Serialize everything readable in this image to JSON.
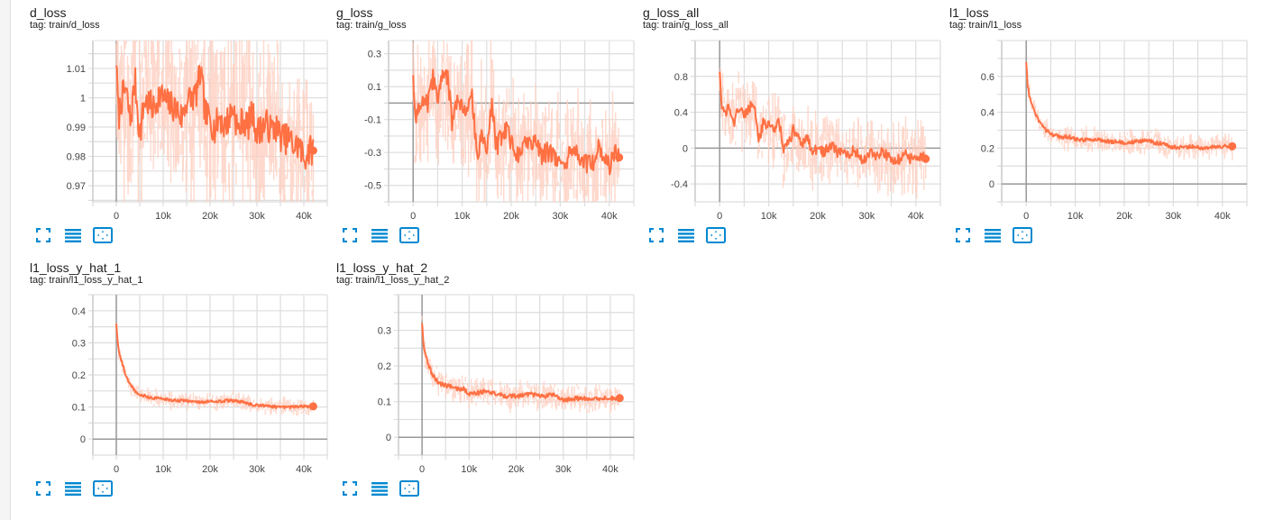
{
  "colors": {
    "accent": "#ff7043",
    "raw_line": "#ffccbc",
    "grid": "#dddddd",
    "axis_zero": "#999999",
    "icon": "#0288d1",
    "text": "#212121"
  },
  "toolbar": {
    "fit_icon": "fullscreen-icon",
    "data_icon": "list-icon",
    "zoom_icon": "fit-domain-icon"
  },
  "cards": [
    {
      "title": "d_loss",
      "tag": "tag: train/d_loss"
    },
    {
      "title": "g_loss",
      "tag": "tag: train/g_loss"
    },
    {
      "title": "g_loss_all",
      "tag": "tag: train/g_loss_all"
    },
    {
      "title": "l1_loss",
      "tag": "tag: train/l1_loss"
    },
    {
      "title": "l1_loss_y_hat_1",
      "tag": "tag: train/l1_loss_y_hat_1"
    },
    {
      "title": "l1_loss_y_hat_2",
      "tag": "tag: train/l1_loss_y_hat_2"
    }
  ],
  "chart_data": [
    {
      "type": "line",
      "title": "d_loss",
      "subtitle": "tag: train/d_loss",
      "xlabel": "",
      "ylabel": "",
      "x_ticks": [
        "0",
        "10k",
        "20k",
        "30k",
        "40k"
      ],
      "y_ticks": [
        "1.01",
        "1",
        "0.99",
        "0.98",
        "0.97"
      ],
      "y_tick_values": [
        1.01,
        1.0,
        0.99,
        0.98,
        0.97
      ],
      "xlim": [
        -5000,
        45000
      ],
      "ylim": [
        0.9645,
        1.0195
      ],
      "grid": true,
      "raw_spread": 0.03,
      "series": [
        {
          "name": "train/d_loss (smoothed)",
          "x": [
            0,
            500,
            1000,
            2000,
            3000,
            4000,
            5000,
            6000,
            7000,
            8000,
            9000,
            10000,
            11000,
            12000,
            13000,
            14000,
            15000,
            16000,
            17000,
            18000,
            19000,
            20000,
            21000,
            22000,
            23000,
            24000,
            25000,
            26000,
            27000,
            28000,
            29000,
            30000,
            31000,
            32000,
            33000,
            34000,
            35000,
            36000,
            37000,
            38000,
            39000,
            40000,
            41000,
            42000
          ],
          "values": [
            1.011,
            0.993,
            0.999,
            1.003,
            0.992,
            1.006,
            0.987,
            0.999,
            0.998,
            0.996,
            1.001,
            1.0,
            0.998,
            0.997,
            0.996,
            0.993,
            0.999,
            1.0,
            1.001,
            1.009,
            0.994,
            0.993,
            0.989,
            0.994,
            0.99,
            0.993,
            0.997,
            0.988,
            0.993,
            0.99,
            0.995,
            0.988,
            0.99,
            0.991,
            0.989,
            0.99,
            0.987,
            0.986,
            0.986,
            0.983,
            0.984,
            0.979,
            0.982,
            0.982
          ]
        }
      ]
    },
    {
      "type": "line",
      "title": "g_loss",
      "subtitle": "tag: train/g_loss",
      "xlabel": "",
      "ylabel": "",
      "x_ticks": [
        "0",
        "10k",
        "20k",
        "30k",
        "40k"
      ],
      "y_ticks": [
        "0.3",
        "0.1",
        "-0.1",
        "-0.3",
        "-0.5"
      ],
      "y_tick_values": [
        0.3,
        0.1,
        -0.1,
        -0.3,
        -0.5
      ],
      "xlim": [
        -5000,
        45000
      ],
      "ylim": [
        -0.6,
        0.38
      ],
      "grid": true,
      "raw_spread": 0.35,
      "series": [
        {
          "name": "train/g_loss (smoothed)",
          "x": [
            0,
            500,
            1000,
            2000,
            3000,
            4000,
            5000,
            6000,
            7000,
            8000,
            9000,
            10000,
            11000,
            12000,
            13000,
            14000,
            15000,
            16000,
            17000,
            18000,
            19000,
            20000,
            21000,
            22000,
            23000,
            24000,
            25000,
            26000,
            27000,
            28000,
            29000,
            30000,
            31000,
            32000,
            33000,
            34000,
            35000,
            36000,
            37000,
            38000,
            39000,
            40000,
            41000,
            42000
          ],
          "values": [
            0.17,
            -0.12,
            -0.05,
            0.05,
            -0.02,
            0.15,
            0.0,
            0.2,
            0.15,
            -0.12,
            0.05,
            0.0,
            -0.05,
            0.05,
            -0.3,
            -0.2,
            -0.25,
            0.0,
            -0.28,
            -0.2,
            -0.15,
            -0.25,
            -0.3,
            -0.3,
            -0.24,
            -0.27,
            -0.25,
            -0.32,
            -0.3,
            -0.3,
            -0.35,
            -0.33,
            -0.36,
            -0.3,
            -0.28,
            -0.32,
            -0.38,
            -0.34,
            -0.36,
            -0.25,
            -0.32,
            -0.38,
            -0.31,
            -0.33
          ]
        }
      ]
    },
    {
      "type": "line",
      "title": "g_loss_all",
      "subtitle": "tag: train/g_loss_all",
      "xlabel": "",
      "ylabel": "",
      "x_ticks": [
        "0",
        "10k",
        "20k",
        "30k",
        "40k"
      ],
      "y_ticks": [
        "0.8",
        "0.4",
        "0",
        "-0.4"
      ],
      "y_tick_values": [
        0.8,
        0.4,
        0.0,
        -0.4
      ],
      "xlim": [
        -5000,
        45000
      ],
      "ylim": [
        -0.6,
        1.2
      ],
      "grid": true,
      "raw_spread": 0.35,
      "series": [
        {
          "name": "train/g_loss_all (smoothed)",
          "x": [
            0,
            500,
            1000,
            2000,
            3000,
            4000,
            5000,
            6000,
            7000,
            8000,
            9000,
            10000,
            11000,
            12000,
            13000,
            14000,
            15000,
            16000,
            17000,
            18000,
            19000,
            20000,
            21000,
            22000,
            23000,
            24000,
            25000,
            26000,
            27000,
            28000,
            29000,
            30000,
            31000,
            32000,
            33000,
            34000,
            35000,
            36000,
            37000,
            38000,
            39000,
            40000,
            41000,
            42000
          ],
          "values": [
            0.85,
            0.42,
            0.4,
            0.45,
            0.3,
            0.48,
            0.35,
            0.45,
            0.48,
            0.1,
            0.3,
            0.25,
            0.2,
            0.35,
            0.0,
            0.05,
            0.2,
            0.1,
            0.05,
            0.1,
            -0.05,
            0.0,
            -0.05,
            0.0,
            0.02,
            -0.05,
            -0.05,
            -0.1,
            -0.02,
            -0.05,
            -0.15,
            -0.1,
            -0.05,
            -0.1,
            -0.05,
            -0.08,
            -0.15,
            -0.13,
            -0.12,
            -0.05,
            -0.12,
            -0.15,
            -0.08,
            -0.12
          ]
        }
      ]
    },
    {
      "type": "line",
      "title": "l1_loss",
      "subtitle": "tag: train/l1_loss",
      "xlabel": "",
      "ylabel": "",
      "x_ticks": [
        "0",
        "10k",
        "20k",
        "30k",
        "40k"
      ],
      "y_ticks": [
        "0.6",
        "0.4",
        "0.2",
        "0"
      ],
      "y_tick_values": [
        0.6,
        0.4,
        0.2,
        0.0
      ],
      "xlim": [
        -5000,
        45000
      ],
      "ylim": [
        -0.1,
        0.8
      ],
      "grid": true,
      "raw_spread": 0.06,
      "series": [
        {
          "name": "train/l1_loss (smoothed)",
          "x": [
            0,
            300,
            700,
            1200,
            2000,
            3000,
            4000,
            5000,
            6000,
            7000,
            8000,
            9000,
            10000,
            12000,
            14000,
            16000,
            18000,
            20000,
            22000,
            24000,
            25000,
            26000,
            28000,
            29000,
            30000,
            32000,
            34000,
            36000,
            38000,
            40000,
            42000
          ],
          "values": [
            0.68,
            0.55,
            0.48,
            0.44,
            0.38,
            0.33,
            0.3,
            0.28,
            0.27,
            0.26,
            0.265,
            0.26,
            0.25,
            0.245,
            0.25,
            0.24,
            0.235,
            0.23,
            0.235,
            0.24,
            0.245,
            0.23,
            0.225,
            0.21,
            0.205,
            0.205,
            0.21,
            0.2,
            0.205,
            0.21,
            0.21
          ]
        }
      ]
    },
    {
      "type": "line",
      "title": "l1_loss_y_hat_1",
      "subtitle": "tag: train/l1_loss_y_hat_1",
      "xlabel": "",
      "ylabel": "",
      "x_ticks": [
        "0",
        "10k",
        "20k",
        "30k",
        "40k"
      ],
      "y_ticks": [
        "0.4",
        "0.3",
        "0.2",
        "0.1",
        "0"
      ],
      "y_tick_values": [
        0.4,
        0.3,
        0.2,
        0.1,
        0.0
      ],
      "xlim": [
        -5000,
        45000
      ],
      "ylim": [
        -0.05,
        0.45
      ],
      "grid": true,
      "raw_spread": 0.025,
      "series": [
        {
          "name": "train/l1_loss_y_hat_1 (smoothed)",
          "x": [
            0,
            300,
            700,
            1200,
            2000,
            3000,
            4000,
            5000,
            6000,
            7000,
            8000,
            10000,
            12000,
            14000,
            16000,
            18000,
            20000,
            22000,
            24000,
            26000,
            27000,
            28000,
            30000,
            32000,
            34000,
            36000,
            38000,
            40000,
            42000
          ],
          "values": [
            0.36,
            0.3,
            0.26,
            0.24,
            0.2,
            0.17,
            0.15,
            0.14,
            0.135,
            0.13,
            0.128,
            0.125,
            0.12,
            0.12,
            0.118,
            0.115,
            0.117,
            0.118,
            0.12,
            0.118,
            0.115,
            0.11,
            0.105,
            0.103,
            0.1,
            0.1,
            0.1,
            0.102,
            0.102
          ]
        }
      ]
    },
    {
      "type": "line",
      "title": "l1_loss_y_hat_2",
      "subtitle": "tag: train/l1_loss_y_hat_2",
      "xlabel": "",
      "ylabel": "",
      "x_ticks": [
        "0",
        "10k",
        "20k",
        "30k",
        "40k"
      ],
      "y_ticks": [
        "0.3",
        "0.2",
        "0.1",
        "0"
      ],
      "y_tick_values": [
        0.3,
        0.2,
        0.1,
        0.0
      ],
      "xlim": [
        -5000,
        45000
      ],
      "ylim": [
        -0.05,
        0.4
      ],
      "grid": true,
      "raw_spread": 0.035,
      "series": [
        {
          "name": "train/l1_loss_y_hat_2 (smoothed)",
          "x": [
            0,
            300,
            700,
            1200,
            2000,
            3000,
            4000,
            5000,
            6000,
            7000,
            8000,
            9000,
            10000,
            12000,
            14000,
            16000,
            18000,
            20000,
            22000,
            24000,
            26000,
            28000,
            29000,
            30000,
            32000,
            34000,
            36000,
            38000,
            40000,
            42000
          ],
          "values": [
            0.32,
            0.26,
            0.23,
            0.21,
            0.18,
            0.16,
            0.15,
            0.145,
            0.145,
            0.14,
            0.135,
            0.135,
            0.12,
            0.125,
            0.13,
            0.12,
            0.115,
            0.115,
            0.12,
            0.12,
            0.115,
            0.12,
            0.11,
            0.105,
            0.108,
            0.11,
            0.105,
            0.11,
            0.11,
            0.11
          ]
        }
      ]
    }
  ]
}
